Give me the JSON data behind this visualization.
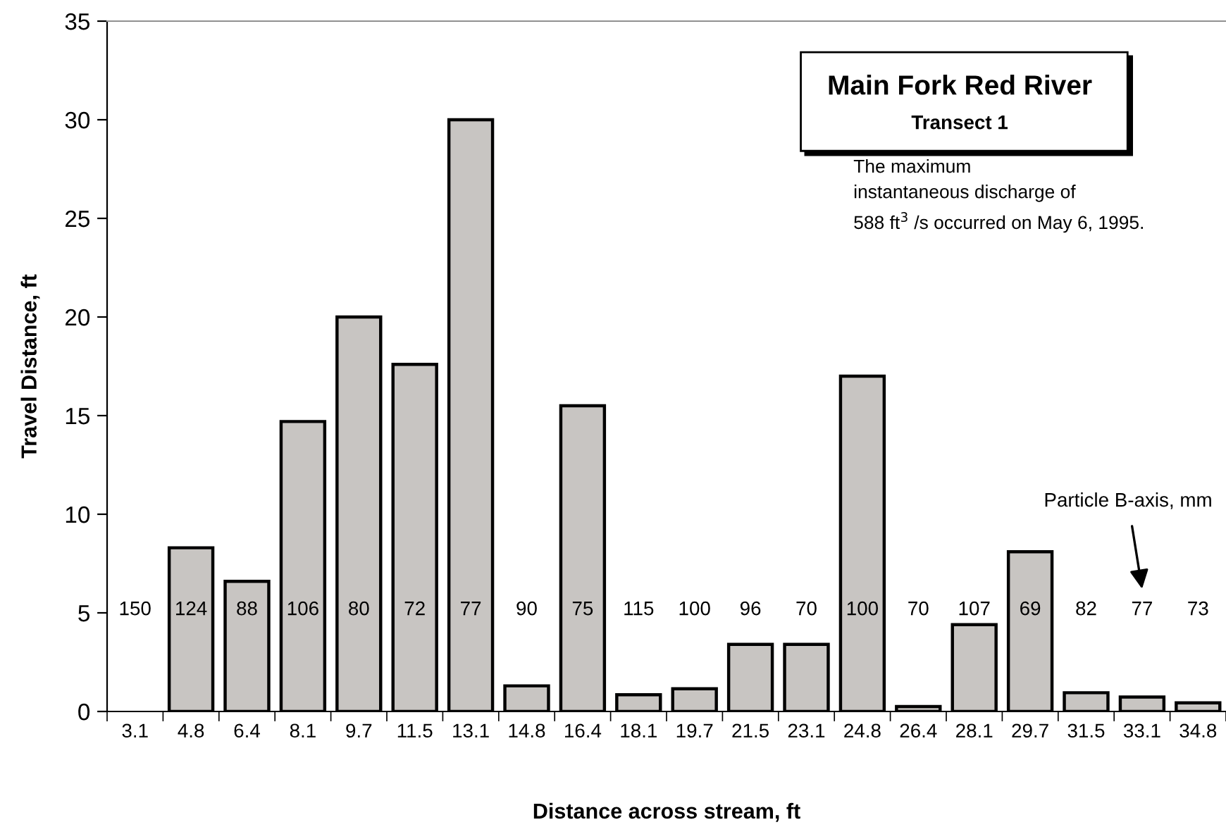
{
  "chart_data": {
    "type": "bar",
    "title": "Main Fork Red River",
    "subtitle": "Transect 1",
    "xlabel": "Distance across stream, ft",
    "ylabel": "Travel Distance, ft",
    "categories": [
      "3.1",
      "4.8",
      "6.4",
      "8.1",
      "9.7",
      "11.5",
      "13.1",
      "14.8",
      "16.4",
      "18.1",
      "19.7",
      "21.5",
      "23.1",
      "24.8",
      "26.4",
      "28.1",
      "29.7",
      "31.5",
      "33.1",
      "34.8"
    ],
    "values": [
      null,
      8.3,
      6.6,
      14.7,
      20.0,
      17.6,
      30.0,
      1.3,
      15.5,
      0.85,
      1.15,
      3.4,
      3.4,
      17.0,
      0.25,
      4.4,
      8.1,
      0.95,
      0.73,
      0.44
    ],
    "color": "#c8c5c2",
    "ylim": [
      0,
      35
    ],
    "yticks": [
      0,
      5,
      10,
      15,
      20,
      25,
      30,
      35
    ],
    "grid": false,
    "annotations": [
      "The maximum\ninstantaneous discharge of\n588 ft$^{3}$ /s occurred on May 6, 1995.",
      "Particle B-axis, mm",
      "150",
      "124",
      "88",
      "106",
      "80",
      "72",
      "77",
      "90",
      "75",
      "115",
      "100",
      "96",
      "70",
      "100",
      "70",
      "107",
      "69",
      "82",
      "77",
      "73"
    ]
  }
}
